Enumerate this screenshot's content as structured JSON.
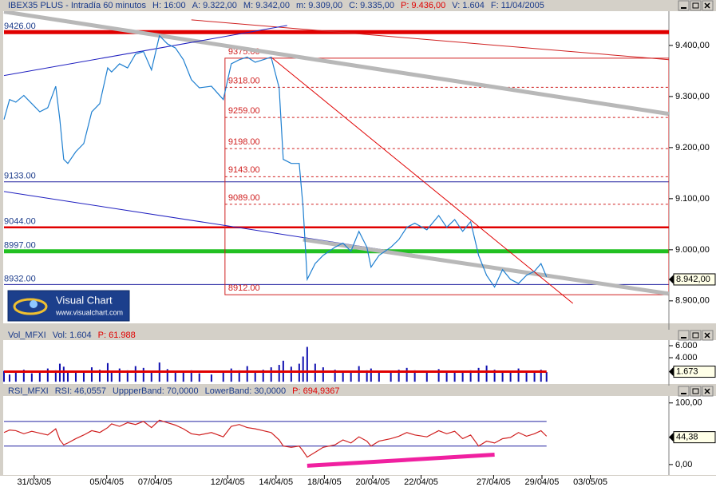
{
  "brand": {
    "name": "Visual Chart",
    "url": "www.visualchart.com"
  },
  "chart_data": [
    {
      "type": "line",
      "title": "IBEX35 PLUS - Intradía 60 minutos",
      "info": [
        {
          "text": "H: 16:00",
          "color": "#1a3a8a"
        },
        {
          "text": "A: 9.322,00",
          "color": "#1a3a8a"
        },
        {
          "text": "M: 9.342,00",
          "color": "#1a3a8a"
        },
        {
          "text": "m: 9.309,00",
          "color": "#1a3a8a"
        },
        {
          "text": "C: 9.335,00",
          "color": "#1a3a8a"
        },
        {
          "text": "P: 9.436,00",
          "color": "#e00000"
        },
        {
          "text": "V: 1.604",
          "color": "#1a3a8a"
        },
        {
          "text": "F: 11/04/2005",
          "color": "#1a3a8a"
        }
      ],
      "color": "#1e7fd0",
      "x": [
        -0.25,
        -0.02,
        0.24,
        0.57,
        0.9,
        1.23,
        1.56,
        1.89,
        2.06,
        2.22,
        2.39,
        2.72,
        3.05,
        3.38,
        3.71,
        4.04,
        4.2,
        4.53,
        4.86,
        5.19,
        5.52,
        5.85,
        6.18,
        6.51,
        6.84,
        7.17,
        7.5,
        7.83,
        8.33,
        8.82,
        9.15,
        9.48,
        9.81,
        10.14,
        10.47,
        10.8,
        11.13,
        11.3,
        11.63,
        11.96,
        12.12,
        12.29,
        12.62,
        12.95,
        13.44,
        13.77,
        14.1,
        14.43,
        14.76,
        14.93,
        15.26,
        15.75,
        16.08,
        16.41,
        16.74,
        17.24,
        17.73,
        18.06,
        18.39,
        18.72,
        19.05,
        19.38,
        19.71,
        20.04,
        20.37,
        20.7,
        21.03,
        21.36,
        21.69,
        21.96,
        22.19
      ],
      "values": [
        9255,
        9294,
        9289,
        9302,
        9286,
        9270,
        9278,
        9320,
        9255,
        9177,
        9169,
        9192,
        9208,
        9270,
        9286,
        9356,
        9348,
        9364,
        9356,
        9383,
        9388,
        9352,
        9419,
        9403,
        9395,
        9372,
        9333,
        9317,
        9320,
        9294,
        9364,
        9372,
        9377,
        9367,
        9372,
        9377,
        9317,
        9177,
        9169,
        9169,
        9083,
        8942,
        8973,
        8989,
        9005,
        9013,
        8997,
        9036,
        9005,
        8966,
        8989,
        9005,
        9020,
        9044,
        9052,
        9039,
        9067,
        9044,
        9059,
        9036,
        9055,
        8989,
        8950,
        8927,
        8961,
        8942,
        8934,
        8950,
        8958,
        8973,
        8947
      ],
      "xlim": [
        -0.25,
        27.25
      ],
      "xticks": [
        {
          "value": 1,
          "label": "31/03/05"
        },
        {
          "value": 4,
          "label": "05/04/05"
        },
        {
          "value": 6,
          "label": "07/04/05"
        },
        {
          "value": 9,
          "label": "12/04/05"
        },
        {
          "value": 11,
          "label": "14/04/05"
        },
        {
          "value": 13,
          "label": "18/04/05"
        },
        {
          "value": 15,
          "label": "20/04/05"
        },
        {
          "value": 17,
          "label": "22/04/05"
        },
        {
          "value": 20,
          "label": "27/04/05"
        },
        {
          "value": 22,
          "label": "29/04/05"
        },
        {
          "value": 24,
          "label": "03/05/05"
        }
      ],
      "ylim": [
        8856,
        9467
      ],
      "yticks": [
        {
          "value": 8900,
          "label": "8.900,00"
        },
        {
          "value": 9000,
          "label": "9.000,00"
        },
        {
          "value": 9100,
          "label": "9.100,00"
        },
        {
          "value": 9200,
          "label": "9.200,00"
        },
        {
          "value": 9300,
          "label": "9.300,00"
        },
        {
          "value": 9400,
          "label": "9.400,00"
        }
      ],
      "levels": [
        {
          "value": 9426,
          "label": "9426.00",
          "color": "#e00000",
          "style": "thick"
        },
        {
          "value": 9133,
          "label": "9133.00",
          "color": "#2020a0",
          "style": "thin"
        },
        {
          "value": 9044,
          "label": "9044.00",
          "color": "#e00000",
          "style": "medium"
        },
        {
          "value": 8997,
          "label": "8997.00",
          "color": "#22c022",
          "style": "thick"
        },
        {
          "value": 8932,
          "label": "8932.00",
          "color": "#2020a0",
          "style": "thin"
        }
      ],
      "fibonacci": {
        "color": "#d02020",
        "x_start": 8.89,
        "levels": [
          {
            "value": 9375,
            "label": "9375.00"
          },
          {
            "value": 9318,
            "label": "9318.00"
          },
          {
            "value": 9259,
            "label": "9259.00"
          },
          {
            "value": 9198,
            "label": "9198.00"
          },
          {
            "value": 9143,
            "label": "9143.00"
          },
          {
            "value": 9089,
            "label": "9089.00"
          },
          {
            "value": 8912,
            "label": "8912.00"
          }
        ]
      },
      "trendlines": [
        {
          "x": [
            -0.25,
            27.25
          ],
          "y": [
            9466,
            9266
          ],
          "color": "#b8b8b8",
          "style": "thick"
        },
        {
          "x": [
            7.5,
            27.25
          ],
          "y": [
            9450,
            9372
          ],
          "color": "#d02020",
          "style": "thin"
        },
        {
          "x": [
            -0.25,
            11.46
          ],
          "y": [
            9341,
            9439
          ],
          "color": "#2020c0",
          "style": "thin"
        },
        {
          "x": [
            -0.25,
            27.25
          ],
          "y": [
            9114,
            8914
          ],
          "color": "#2020c0",
          "style": "thin"
        },
        {
          "x": [
            12.12,
            27.25
          ],
          "y": [
            9020,
            8914
          ],
          "color": "#b8b8b8",
          "style": "thick"
        },
        {
          "x": [
            10.8,
            23.28
          ],
          "y": [
            9377,
            8895
          ],
          "color": "#e00000",
          "style": "thin"
        }
      ],
      "last": {
        "value": 8942,
        "label": "8.942,00"
      }
    },
    {
      "type": "bar",
      "title": "Vol_MFXI",
      "info": [
        {
          "text": "Vol: 1.604",
          "color": "#1a3a8a"
        },
        {
          "text": "P: 61.988",
          "color": "#e00000"
        }
      ],
      "color": "#1010b0",
      "values": [
        1800,
        1200,
        1500,
        2000,
        1400,
        1600,
        2200,
        1900,
        3000,
        2500,
        1800,
        1500,
        1700,
        2400,
        2000,
        3100,
        1700,
        2200,
        1900,
        2600,
        2300,
        1800,
        3200,
        2100,
        1700,
        1500,
        1900,
        1400,
        1200,
        1800,
        2200,
        1900,
        2600,
        1700,
        2000,
        2400,
        2800,
        3500,
        2500,
        3000,
        4200,
        5800,
        3000,
        2400,
        2000,
        1800,
        1700,
        2600,
        1900,
        2200,
        1800,
        1500,
        2000,
        2300,
        1900,
        1700,
        2100,
        1600,
        1800,
        1500,
        1900,
        2300,
        2700,
        2000,
        1700,
        1500,
        2200,
        1800,
        1600,
        2000,
        1604
      ],
      "average": {
        "value": 1673,
        "label": "1.673"
      },
      "average_color": "#e00000",
      "ylim": [
        -250,
        6800
      ],
      "yticks": [
        {
          "value": 4000,
          "label": "4.000"
        },
        {
          "value": 6000,
          "label": "6.000"
        }
      ]
    },
    {
      "type": "line",
      "title": "RSI_MFXI",
      "info": [
        {
          "text": "RSI: 46,0557",
          "color": "#1a3a8a"
        },
        {
          "text": "UppperBand: 70,0000",
          "color": "#1a3a8a"
        },
        {
          "text": "LowerBand: 30,0000",
          "color": "#1a3a8a"
        },
        {
          "text": "P: 694,9367",
          "color": "#e00000"
        }
      ],
      "color": "#d02020",
      "values": [
        52,
        56,
        55,
        50,
        54,
        51,
        48,
        58,
        40,
        32,
        35,
        42,
        48,
        55,
        52,
        60,
        66,
        62,
        68,
        65,
        70,
        60,
        72,
        68,
        64,
        58,
        50,
        48,
        52,
        45,
        62,
        65,
        60,
        58,
        55,
        52,
        40,
        30,
        28,
        30,
        22,
        12,
        20,
        28,
        32,
        40,
        35,
        45,
        38,
        30,
        38,
        42,
        46,
        52,
        48,
        45,
        55,
        50,
        54,
        42,
        48,
        30,
        38,
        35,
        42,
        44,
        52,
        46,
        50,
        55,
        46
      ],
      "bands": [
        70,
        30
      ],
      "band_color": "#2020a0",
      "trendlines": [
        {
          "x": [
            12.29,
            20.04
          ],
          "y": [
            -2,
            16
          ],
          "color": "#f020a0",
          "style": "thick"
        }
      ],
      "last": {
        "value": 44.38,
        "label": "44,38"
      },
      "ylim": [
        -17,
        110
      ],
      "yticks": [
        {
          "value": 0,
          "label": "0,00"
        },
        {
          "value": 100,
          "label": "100,00"
        }
      ]
    }
  ]
}
